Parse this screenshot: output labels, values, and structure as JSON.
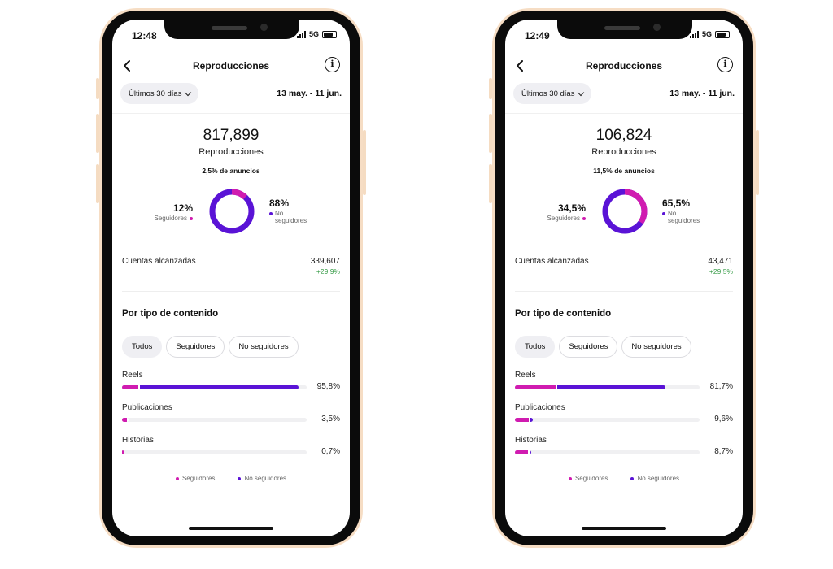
{
  "colors": {
    "followers": "#d01cb0",
    "non_followers": "#5a13d6",
    "frame": "#f6ddc4",
    "positive": "#3a9d4a"
  },
  "phones": [
    {
      "status_time": "12:48",
      "network": "5G",
      "title": "Reproducciones",
      "range_label": "Últimos 30 días",
      "range_dates": "13 may. - 11 jun.",
      "total": "817,899",
      "total_label": "Reproducciones",
      "ads_share": "2,5% de anuncios",
      "followers_pct": "12%",
      "followers_label": "Seguidores",
      "nonfollowers_pct": "88%",
      "nonfollowers_label_1": "No",
      "nonfollowers_label_2": "seguidores",
      "followers_fraction": 0.12,
      "accounts_label": "Cuentas alcanzadas",
      "accounts_value": "339,607",
      "accounts_change": "+29,9%",
      "section_title": "Por tipo de contenido",
      "chips": [
        "Todos",
        "Seguidores",
        "No seguidores"
      ],
      "content_types": [
        {
          "label": "Reels",
          "pct": "95,8%",
          "value": 95.8,
          "followers_share": 0.09
        },
        {
          "label": "Publicaciones",
          "pct": "3,5%",
          "value": 3.5,
          "followers_share": 0.8
        },
        {
          "label": "Historias",
          "pct": "0,7%",
          "value": 0.7,
          "followers_share": 1.0
        }
      ],
      "legend_followers": "Seguidores",
      "legend_nonfollowers": "No seguidores"
    },
    {
      "status_time": "12:49",
      "network": "5G",
      "title": "Reproducciones",
      "range_label": "Últimos 30 días",
      "range_dates": "13 may. - 11 jun.",
      "total": "106,824",
      "total_label": "Reproducciones",
      "ads_share": "11,5% de anuncios",
      "followers_pct": "34,5%",
      "followers_label": "Seguidores",
      "nonfollowers_pct": "65,5%",
      "nonfollowers_label_1": "No",
      "nonfollowers_label_2": "seguidores",
      "followers_fraction": 0.345,
      "accounts_label": "Cuentas alcanzadas",
      "accounts_value": "43,471",
      "accounts_change": "+29,5%",
      "section_title": "Por tipo de contenido",
      "chips": [
        "Todos",
        "Seguidores",
        "No seguidores"
      ],
      "content_types": [
        {
          "label": "Reels",
          "pct": "81,7%",
          "value": 81.7,
          "followers_share": 0.27
        },
        {
          "label": "Publicaciones",
          "pct": "9,6%",
          "value": 9.6,
          "followers_share": 0.8
        },
        {
          "label": "Historias",
          "pct": "8,7%",
          "value": 8.7,
          "followers_share": 0.8
        }
      ],
      "legend_followers": "Seguidores",
      "legend_nonfollowers": "No seguidores"
    }
  ]
}
